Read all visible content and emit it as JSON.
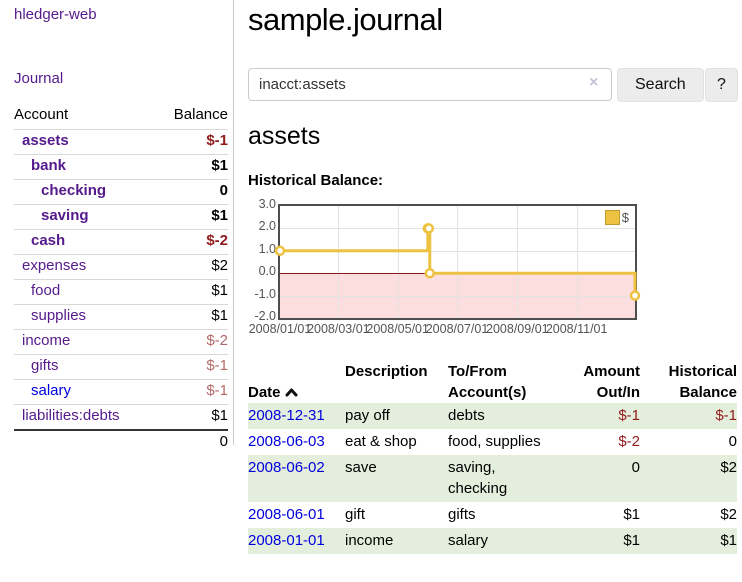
{
  "app": {
    "brand": "hledger-web"
  },
  "colors": {
    "link_purple": "#551a8b",
    "link_blue": "#0000dd",
    "negative_strong": "#911c1c",
    "negative_dim": "#b16a6a",
    "row_highlight_green": "#e4eedd",
    "series_gold": "#edc240",
    "chart_negative_fill": "#fcdede",
    "chart_zero_line": "#8b1a1a"
  },
  "sidebar": {
    "nav": [
      {
        "label": "Journal"
      }
    ],
    "accounts_table": {
      "headers": {
        "account": "Account",
        "balance": "Balance"
      },
      "rows": [
        {
          "name": "assets",
          "depth": 1,
          "bold": true,
          "balance": "$-1",
          "balance_style": "neg",
          "balance_bold": true,
          "link_color": "purple"
        },
        {
          "name": "bank",
          "depth": 2,
          "bold": true,
          "balance": "$1",
          "balance_style": "",
          "balance_bold": true,
          "link_color": "purple"
        },
        {
          "name": "checking",
          "depth": 3,
          "bold": true,
          "balance": "0",
          "balance_style": "",
          "balance_bold": true,
          "link_color": "purple"
        },
        {
          "name": "saving",
          "depth": 3,
          "bold": true,
          "balance": "$1",
          "balance_style": "",
          "balance_bold": true,
          "link_color": "purple"
        },
        {
          "name": "cash",
          "depth": 2,
          "bold": true,
          "balance": "$-2",
          "balance_style": "neg",
          "balance_bold": true,
          "link_color": "purple"
        },
        {
          "name": "expenses",
          "depth": 1,
          "bold": false,
          "balance": "$2",
          "balance_style": "",
          "balance_bold": false,
          "link_color": "purple"
        },
        {
          "name": "food",
          "depth": 2,
          "bold": false,
          "balance": "$1",
          "balance_style": "",
          "balance_bold": false,
          "link_color": "purple"
        },
        {
          "name": "supplies",
          "depth": 2,
          "bold": false,
          "balance": "$1",
          "balance_style": "",
          "balance_bold": false,
          "link_color": "purple"
        },
        {
          "name": "income",
          "depth": 1,
          "bold": false,
          "balance": "$-2",
          "balance_style": "rose",
          "balance_bold": false,
          "link_color": "purple"
        },
        {
          "name": "gifts",
          "depth": 2,
          "bold": false,
          "balance": "$-1",
          "balance_style": "rose",
          "balance_bold": false,
          "link_color": "purple"
        },
        {
          "name": "salary",
          "depth": 2,
          "bold": false,
          "balance": "$-1",
          "balance_style": "rose",
          "balance_bold": false,
          "link_color": "blue"
        },
        {
          "name": "liabilities:debts",
          "depth": 1,
          "bold": false,
          "balance": "$1",
          "balance_style": "",
          "balance_bold": false,
          "link_color": "purple"
        }
      ],
      "total": "0"
    }
  },
  "main": {
    "title": "sample.journal",
    "search": {
      "value": "inacct:assets",
      "clear_icon": "×",
      "button_label": "Search",
      "help_label": "?"
    },
    "account_heading": "assets",
    "chart_label": "Historical Balance:",
    "register": {
      "headers": {
        "date": "Date",
        "sort_icon": "chevron-up",
        "description": "Description",
        "accounts": "To/From\nAccount(s)",
        "amount": "Amount\nOut/In",
        "balance": "Historical\nBalance"
      },
      "rows": [
        {
          "date": "2008-12-31",
          "description": "pay off",
          "accounts": "debts",
          "amount": "$-1",
          "amount_style": "neg",
          "balance": "$-1",
          "balance_style": "neg",
          "highlight": true
        },
        {
          "date": "2008-06-03",
          "description": "eat & shop",
          "accounts": "food, supplies",
          "amount": "$-2",
          "amount_style": "neg",
          "balance": "0",
          "balance_style": "",
          "highlight": false
        },
        {
          "date": "2008-06-02",
          "description": "save",
          "accounts": "saving,\nchecking",
          "amount": "0",
          "amount_style": "",
          "balance": "$2",
          "balance_style": "",
          "highlight": true
        },
        {
          "date": "2008-06-01",
          "description": "gift",
          "accounts": "gifts",
          "amount": "$1",
          "amount_style": "",
          "balance": "$2",
          "balance_style": "",
          "highlight": false
        },
        {
          "date": "2008-01-01",
          "description": "income",
          "accounts": "salary",
          "amount": "$1",
          "amount_style": "",
          "balance": "$1",
          "balance_style": "",
          "highlight": true
        }
      ]
    }
  },
  "chart_data": {
    "type": "line",
    "step_line": true,
    "title": "Historical Balance",
    "x_range": [
      "2008-01-01",
      "2008-12-31"
    ],
    "ylim": [
      -2,
      3
    ],
    "y_ticks": [
      3.0,
      2.0,
      1.0,
      0.0,
      -1.0,
      -2.0
    ],
    "y_tick_labels": [
      "3.0",
      "2.0",
      "1.0",
      "0.0",
      "-1.0",
      "-2.0"
    ],
    "x_tick_labels": [
      "2008/01/01",
      "2008/03/01",
      "2008/05/01",
      "2008/07/01",
      "2008/09/01",
      "2008/11/01"
    ],
    "legend_position": "top-right",
    "grid": true,
    "negative_region_shaded": true,
    "series": [
      {
        "name": "$",
        "color": "#edc240",
        "points": [
          {
            "date": "2008-01-01",
            "value": 1
          },
          {
            "date": "2008-06-01",
            "value": 2
          },
          {
            "date": "2008-06-02",
            "value": 2
          },
          {
            "date": "2008-06-03",
            "value": 0
          },
          {
            "date": "2008-12-31",
            "value": -1
          }
        ]
      }
    ]
  }
}
